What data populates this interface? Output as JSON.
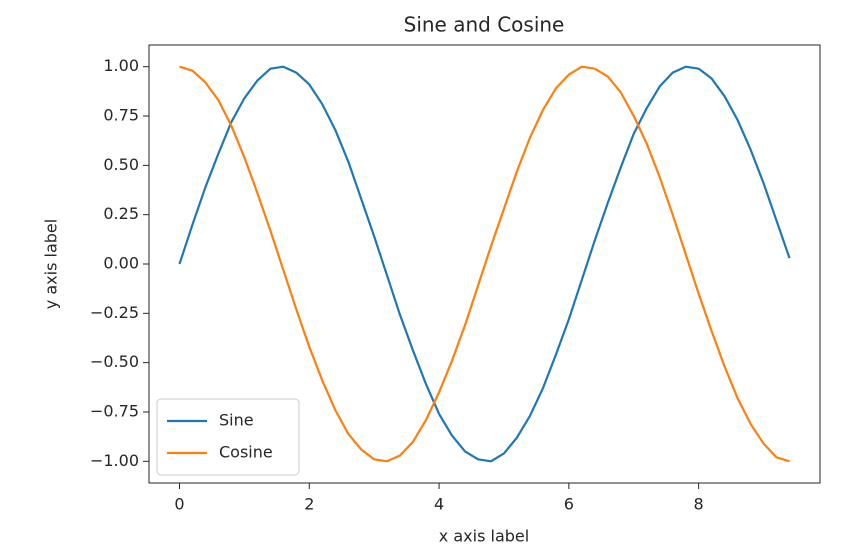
{
  "chart_data": {
    "type": "line",
    "title": "Sine and Cosine",
    "x_label": "x axis label",
    "y_label": "y axis label",
    "x": [
      0,
      0.2,
      0.4,
      0.6,
      0.8,
      1.0,
      1.2,
      1.4,
      1.6,
      1.8,
      2.0,
      2.2,
      2.4,
      2.6,
      2.8,
      3.0,
      3.2,
      3.4,
      3.6,
      3.8,
      4.0,
      4.2,
      4.4,
      4.6,
      4.8,
      5.0,
      5.2,
      5.4,
      5.6,
      5.8,
      6.0,
      6.2,
      6.4,
      6.6,
      6.8,
      7.0,
      7.2,
      7.4,
      7.6,
      7.8,
      8.0,
      8.2,
      8.4,
      8.6,
      8.8,
      9.0,
      9.2,
      9.4
    ],
    "series": [
      {
        "name": "Sine",
        "color": "#1f77b4",
        "values": [
          0,
          0.2,
          0.39,
          0.56,
          0.72,
          0.84,
          0.93,
          0.99,
          1.0,
          0.97,
          0.91,
          0.81,
          0.68,
          0.52,
          0.33,
          0.14,
          -0.06,
          -0.26,
          -0.44,
          -0.61,
          -0.76,
          -0.87,
          -0.95,
          -0.99,
          -1.0,
          -0.96,
          -0.88,
          -0.77,
          -0.63,
          -0.46,
          -0.28,
          -0.08,
          0.12,
          0.31,
          0.49,
          0.66,
          0.79,
          0.9,
          0.97,
          1.0,
          0.99,
          0.94,
          0.85,
          0.73,
          0.58,
          0.41,
          0.22,
          0.03
        ]
      },
      {
        "name": "Cosine",
        "color": "#ff7f0e",
        "values": [
          1.0,
          0.98,
          0.92,
          0.83,
          0.7,
          0.54,
          0.36,
          0.17,
          -0.03,
          -0.23,
          -0.42,
          -0.59,
          -0.74,
          -0.86,
          -0.94,
          -0.99,
          -1.0,
          -0.97,
          -0.9,
          -0.79,
          -0.65,
          -0.49,
          -0.31,
          -0.11,
          0.09,
          0.28,
          0.47,
          0.64,
          0.78,
          0.89,
          0.96,
          1.0,
          0.99,
          0.95,
          0.87,
          0.75,
          0.61,
          0.44,
          0.25,
          0.05,
          -0.15,
          -0.34,
          -0.52,
          -0.68,
          -0.81,
          -0.91,
          -0.98,
          -1.0
        ]
      }
    ],
    "xlim": [
      -0.47,
      9.87
    ],
    "ylim": [
      -1.11,
      1.11
    ],
    "xticks": [
      0,
      2,
      4,
      6,
      8
    ],
    "yticks": [
      {
        "value": -1,
        "label": "−1.00"
      },
      {
        "value": -0.75,
        "label": "−0.75"
      },
      {
        "value": -0.5,
        "label": "−0.50"
      },
      {
        "value": -0.25,
        "label": "−0.25"
      },
      {
        "value": 0,
        "label": "0.00"
      },
      {
        "value": 0.25,
        "label": "0.25"
      },
      {
        "value": 0.5,
        "label": "0.50"
      },
      {
        "value": 0.75,
        "label": "0.75"
      },
      {
        "value": 1,
        "label": "1.00"
      }
    ],
    "legend": "lower left"
  }
}
